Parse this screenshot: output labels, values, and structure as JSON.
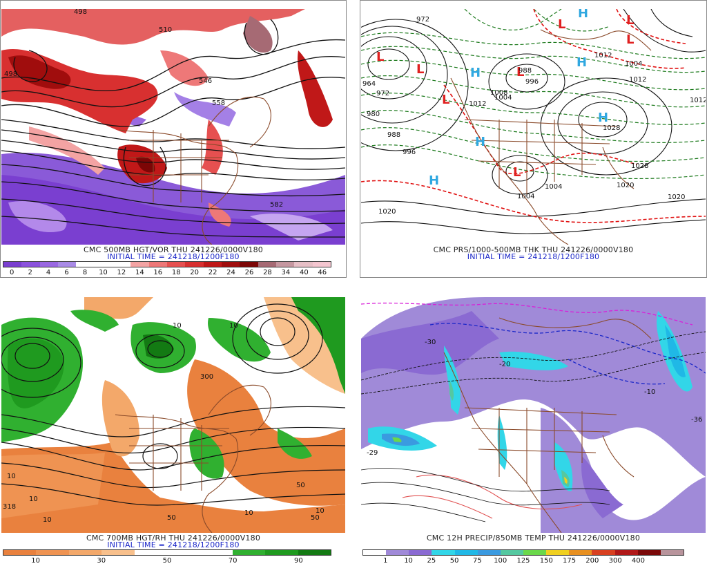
{
  "panels": [
    {
      "id": "hgt_vor",
      "caption": "CMC 500MB HGT/VOR THU 241226/0000V180",
      "initial_time": "INITIAL TIME = 241218/1200F180",
      "colorbar": {
        "colors": [
          "#7a3fd0",
          "#8b52dd",
          "#9a68e2",
          "#a98be6",
          "#ffffff",
          "#ffffff",
          "#ffffff",
          "#f3a3a3",
          "#ee7878",
          "#e65050",
          "#d83030",
          "#c01818",
          "#a00d0d",
          "#7c0606",
          "#a66a74",
          "#c597a0",
          "#e6bfc6",
          "#f4c6d0"
        ],
        "labels": [
          "0",
          "2",
          "4",
          "6",
          "8",
          "10",
          "12",
          "14",
          "16",
          "18",
          "20",
          "22",
          "24",
          "26",
          "28",
          "34",
          "40",
          "46"
        ]
      },
      "map_labels": [
        "498",
        "498",
        "510",
        "546",
        "558",
        "582"
      ]
    },
    {
      "id": "prs_thk",
      "caption": "CMC PRS/1000-500MB THK THU 241226/0000V180",
      "initial_time": "INITIAL TIME = 241218/1200F180",
      "colorbar": null,
      "map_labels": [
        "964",
        "972",
        "980",
        "988",
        "996",
        "1004",
        "1012",
        "1020",
        "1028",
        "1008",
        "1004",
        "1012",
        "1012",
        "1004",
        "1028",
        "1020",
        "1004",
        "1020",
        "996",
        "988",
        "972",
        "1012"
      ],
      "highs_lows": [
        "L",
        "L",
        "L",
        "L",
        "L",
        "L",
        "L",
        "L",
        "H",
        "H",
        "H",
        "H",
        "H",
        "H"
      ]
    },
    {
      "id": "hgt_rh",
      "caption": "CMC 700MB HGT/RH THU 241226/0000V180",
      "initial_time": "INITIAL TIME = 241218/1200F180",
      "colorbar": {
        "colors": [
          "#e9813e",
          "#ef9352",
          "#f3a86a",
          "#f8c08c",
          "#ffffff",
          "#ffffff",
          "#ffffff",
          "#30b030",
          "#1f9a1f",
          "#137a13"
        ],
        "labels": [
          "10",
          "30",
          "50",
          "70",
          "90"
        ]
      },
      "map_labels": [
        "10",
        "10",
        "10",
        "10",
        "10",
        "318",
        "50",
        "50",
        "50",
        "300",
        "10",
        "10"
      ]
    },
    {
      "id": "precip_temp",
      "caption": "CMC 12H PRECIP/850MB TEMP THU 241226/0000V180",
      "initial_time": "",
      "colorbar": {
        "colors": [
          "#ffffff",
          "#a08ad8",
          "#8a6ad2",
          "#32d6e8",
          "#20b8e6",
          "#3a9ae0",
          "#55c8a0",
          "#6ad84a",
          "#f0d020",
          "#e89020",
          "#d84020",
          "#b01818",
          "#7a0808",
          "#b8949c"
        ],
        "labels": [
          "1",
          "10",
          "25",
          "50",
          "75",
          "100",
          "125",
          "150",
          "175",
          "200",
          "300",
          "400"
        ]
      },
      "map_labels": [
        "-30",
        "-20",
        "-10",
        "-29",
        "-36"
      ]
    }
  ],
  "colors": {
    "coast": "#8a4a2a",
    "contour": "#111111",
    "thk_red": "#e01010",
    "thk_green": "#1d7a1d",
    "high_blue": "#30a8e0",
    "low_red": "#e02020",
    "caption_blue": "#1a26c8"
  }
}
